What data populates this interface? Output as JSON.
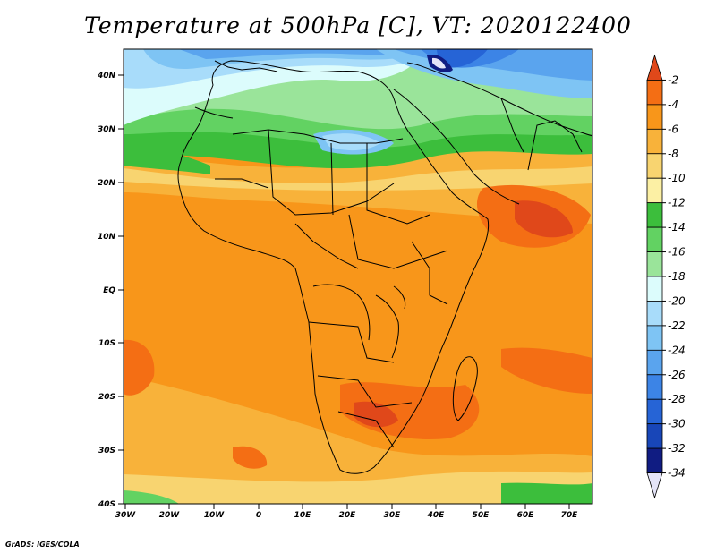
{
  "title": "Temperature at 500hPa [C], VT: 2020122400",
  "credit": "GrADS: IGES/COLA",
  "map": {
    "lat_labels": [
      "40N",
      "30N",
      "20N",
      "10N",
      "EQ",
      "10S",
      "20S",
      "30S",
      "40S"
    ],
    "lon_labels": [
      "30W",
      "20W",
      "10W",
      "0",
      "10E",
      "20E",
      "30E",
      "40E",
      "50E",
      "60E",
      "70E"
    ]
  },
  "colorbar": {
    "labels": [
      "-2",
      "-4",
      "-6",
      "-8",
      "-10",
      "-12",
      "-14",
      "-16",
      "-18",
      "-20",
      "-22",
      "-24",
      "-26",
      "-28",
      "-30",
      "-32",
      "-34"
    ],
    "colors": [
      "#e0481a",
      "#f46e14",
      "#f8961a",
      "#f8b23a",
      "#f8d470",
      "#fcf0a4",
      "#3cbe3c",
      "#62d262",
      "#9ae49a",
      "#dcfcfc",
      "#a8dcfa",
      "#7ec4f4",
      "#5aa4ee",
      "#3c84e6",
      "#2664d6",
      "#1846b8",
      "#101c82",
      "#e4e4f8"
    ]
  }
}
